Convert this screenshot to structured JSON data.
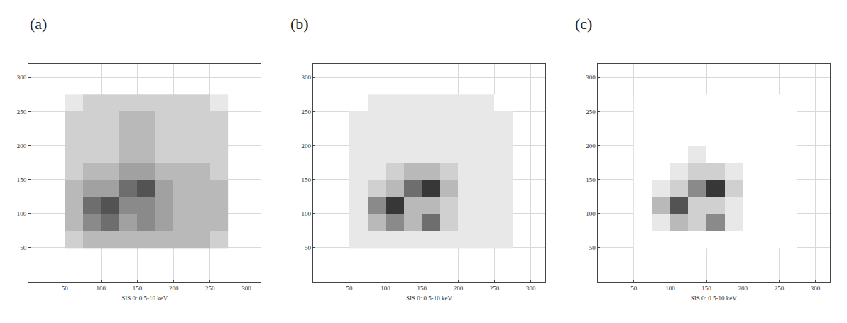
{
  "chart_data": [
    {
      "type": "heatmap",
      "title": "(a)",
      "x_label": "SIS 0: 0.5-10 keV",
      "x": [
        62.5,
        87.5,
        112.5,
        137.5,
        162.5,
        187.5,
        212.5,
        237.5,
        262.5
      ],
      "y": [
        62.5,
        87.5,
        112.5,
        137.5,
        162.5,
        187.5,
        212.5,
        237.5,
        262.5
      ],
      "z": [
        [
          2,
          3,
          3,
          3,
          3,
          3,
          3,
          3,
          2
        ],
        [
          3,
          5,
          6,
          4,
          5,
          4,
          3,
          3,
          3
        ],
        [
          3,
          6,
          7,
          5,
          5,
          4,
          3,
          3,
          3
        ],
        [
          3,
          4,
          4,
          6,
          7,
          4,
          3,
          3,
          3
        ],
        [
          2,
          3,
          3,
          4,
          4,
          3,
          3,
          3,
          2
        ],
        [
          2,
          2,
          2,
          3,
          3,
          2,
          2,
          2,
          2
        ],
        [
          2,
          2,
          2,
          3,
          3,
          2,
          2,
          2,
          2
        ],
        [
          2,
          2,
          2,
          3,
          3,
          2,
          2,
          2,
          2
        ],
        [
          1,
          2,
          2,
          2,
          2,
          2,
          2,
          2,
          1
        ]
      ],
      "zlim": [
        0,
        10
      ],
      "xlim": [
        0,
        320
      ],
      "ylim": [
        0,
        320
      ],
      "xticks": [
        50,
        100,
        150,
        200,
        250,
        300
      ],
      "yticks": [
        50,
        100,
        150,
        200,
        250,
        300
      ],
      "grid": true
    },
    {
      "type": "heatmap",
      "title": "(b)",
      "x_label": "SIS 0: 0.5-10 keV",
      "x": [
        62.5,
        87.5,
        112.5,
        137.5,
        162.5,
        187.5,
        212.5,
        237.5,
        262.5
      ],
      "y": [
        62.5,
        87.5,
        112.5,
        137.5,
        162.5,
        187.5,
        212.5,
        237.5,
        262.5
      ],
      "z": [
        [
          1,
          1,
          1,
          1,
          1,
          1,
          1,
          1,
          1
        ],
        [
          1,
          3,
          5,
          3,
          6,
          2,
          1,
          1,
          1
        ],
        [
          1,
          5,
          8,
          3,
          3,
          2,
          1,
          1,
          1
        ],
        [
          1,
          2,
          3,
          6,
          8,
          3,
          1,
          1,
          1
        ],
        [
          1,
          1,
          2,
          3,
          3,
          2,
          1,
          1,
          1
        ],
        [
          1,
          1,
          1,
          1,
          1,
          1,
          1,
          1,
          1
        ],
        [
          1,
          1,
          1,
          1,
          1,
          1,
          1,
          1,
          1
        ],
        [
          1,
          1,
          1,
          1,
          1,
          1,
          1,
          1,
          1
        ],
        [
          0,
          1,
          1,
          1,
          1,
          1,
          1,
          1,
          0
        ]
      ],
      "zlim": [
        0,
        10
      ],
      "xlim": [
        0,
        320
      ],
      "ylim": [
        0,
        320
      ],
      "xticks": [
        50,
        100,
        150,
        200,
        250,
        300
      ],
      "yticks": [
        50,
        100,
        150,
        200,
        250,
        300
      ],
      "grid": true
    },
    {
      "type": "heatmap",
      "title": "(c)",
      "x_label": "SIS 0: 0.5-10 keV",
      "x": [
        62.5,
        87.5,
        112.5,
        137.5,
        162.5,
        187.5,
        212.5,
        237.5,
        262.5
      ],
      "y": [
        62.5,
        87.5,
        112.5,
        137.5,
        162.5,
        187.5,
        212.5,
        237.5,
        262.5
      ],
      "z": [
        [
          0,
          0,
          0,
          0,
          0,
          0,
          0,
          0,
          0
        ],
        [
          0,
          1,
          3,
          2,
          5,
          1,
          0,
          0,
          0
        ],
        [
          0,
          3,
          7,
          2,
          2,
          1,
          0,
          0,
          0
        ],
        [
          0,
          1,
          2,
          5,
          8,
          2,
          0,
          0,
          0
        ],
        [
          0,
          0,
          1,
          2,
          2,
          1,
          0,
          0,
          0
        ],
        [
          0,
          0,
          0,
          1,
          0,
          0,
          0,
          0,
          0
        ],
        [
          0,
          0,
          0,
          0,
          0,
          0,
          0,
          0,
          0
        ],
        [
          0,
          0,
          0,
          0,
          0,
          0,
          0,
          0,
          0
        ],
        [
          0,
          0,
          0,
          0,
          0,
          0,
          0,
          0,
          0
        ]
      ],
      "zlim": [
        0,
        10
      ],
      "xlim": [
        0,
        320
      ],
      "ylim": [
        0,
        320
      ],
      "xticks": [
        50,
        100,
        150,
        200,
        250,
        300
      ],
      "yticks": [
        50,
        100,
        150,
        200,
        250,
        300
      ],
      "grid": true
    }
  ]
}
